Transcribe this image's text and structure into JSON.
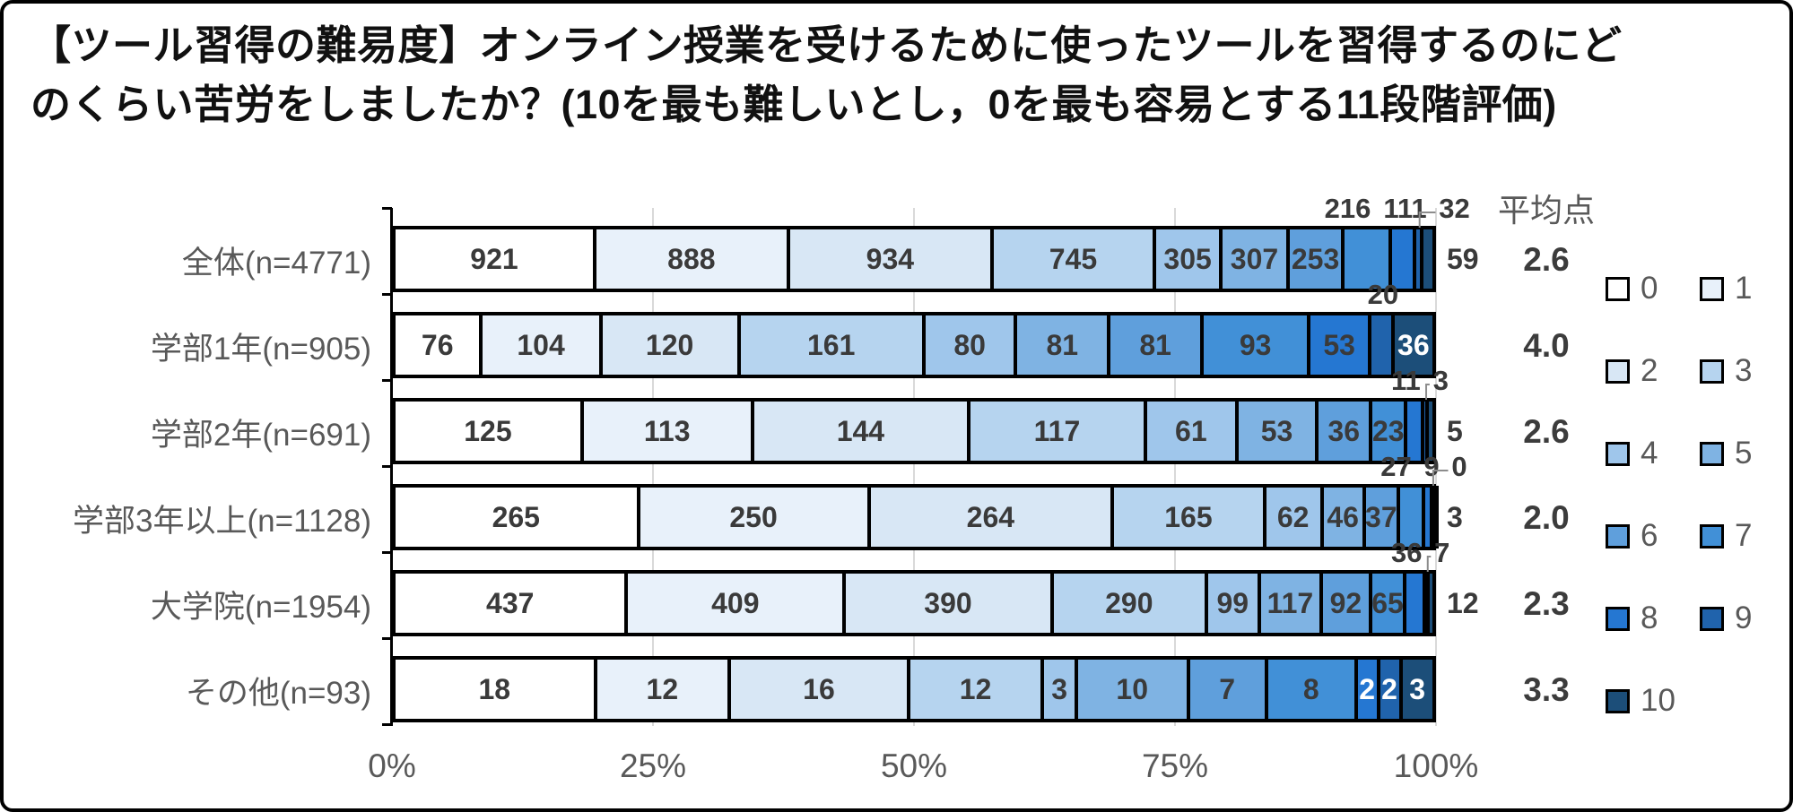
{
  "title": {
    "line1": "【ツール習得の難易度】オンライン授業を受けるために使ったツールを習得するのにど",
    "line2": "のくらい苦労をしましたか？(10を最も難しいとし，0を最も容易とする11段階評価)"
  },
  "chart_data": {
    "type": "bar",
    "variant": "horizontal_100pct_stacked",
    "title": "【ツール習得の難易度】オンライン授業を受けるために使ったツールを習得するのにどのくらい苦労をしましたか？(10を最も難しいとし，0を最も容易とする11段階評価)",
    "categories": [
      "0",
      "1",
      "2",
      "3",
      "4",
      "5",
      "6",
      "7",
      "8",
      "9",
      "10"
    ],
    "colors": [
      "#ffffff",
      "#e8f1fa",
      "#d8e7f5",
      "#b6d4ef",
      "#9fc6eb",
      "#7fb3e3",
      "#5f9fdc",
      "#4190d7",
      "#2577d2",
      "#2063ac",
      "#1c4e79"
    ],
    "x_axis": {
      "ticks": [
        "0%",
        "25%",
        "50%",
        "75%",
        "100%"
      ],
      "range_percent": [
        0,
        100
      ],
      "gridlines": true
    },
    "avg_header": "平均点",
    "legend_position": "right",
    "rows": [
      {
        "label": "全体(n=4771)",
        "n": 4771,
        "average": "2.6",
        "values": [
          921,
          888,
          934,
          745,
          305,
          307,
          253,
          216,
          111,
          32,
          59
        ],
        "placements": [
          "inside",
          "inside",
          "inside",
          "inside",
          "inside",
          "inside",
          "inside",
          "above",
          "above",
          "above",
          "right"
        ]
      },
      {
        "label": "学部1年(n=905)",
        "n": 905,
        "average": "4.0",
        "values": [
          76,
          104,
          120,
          161,
          80,
          81,
          81,
          93,
          53,
          20,
          36
        ],
        "placements": [
          "inside",
          "inside",
          "inside",
          "inside",
          "inside",
          "inside",
          "inside",
          "inside",
          "inside",
          "above",
          "inside-white"
        ]
      },
      {
        "label": "学部2年(n=691)",
        "n": 691,
        "average": "2.6",
        "values": [
          125,
          113,
          144,
          117,
          61,
          53,
          36,
          23,
          11,
          3,
          5
        ],
        "placements": [
          "inside",
          "inside",
          "inside",
          "inside",
          "inside",
          "inside",
          "inside",
          "inside",
          "above",
          "above",
          "right"
        ]
      },
      {
        "label": "学部3年以上(n=1128)",
        "n": 1128,
        "average": "2.0",
        "values": [
          265,
          250,
          264,
          165,
          62,
          46,
          37,
          27,
          9,
          0,
          3
        ],
        "placements": [
          "inside",
          "inside",
          "inside",
          "inside",
          "inside",
          "inside",
          "inside",
          "above",
          "above",
          "above",
          "right"
        ]
      },
      {
        "label": "大学院(n=1954)",
        "n": 1954,
        "average": "2.3",
        "values": [
          437,
          409,
          390,
          290,
          99,
          117,
          92,
          65,
          36,
          7,
          12
        ],
        "placements": [
          "inside",
          "inside",
          "inside",
          "inside",
          "inside",
          "inside",
          "inside",
          "inside",
          "above",
          "above",
          "right"
        ]
      },
      {
        "label": "その他(n=93)",
        "n": 93,
        "average": "3.3",
        "values": [
          18,
          12,
          16,
          12,
          3,
          10,
          7,
          8,
          2,
          2,
          3
        ],
        "placements": [
          "inside",
          "inside",
          "inside",
          "inside",
          "inside",
          "inside",
          "inside",
          "inside",
          "inside-white",
          "inside-white",
          "inside-white"
        ]
      }
    ],
    "legend": [
      "0",
      "1",
      "2",
      "3",
      "4",
      "5",
      "6",
      "7",
      "8",
      "9",
      "10"
    ]
  }
}
